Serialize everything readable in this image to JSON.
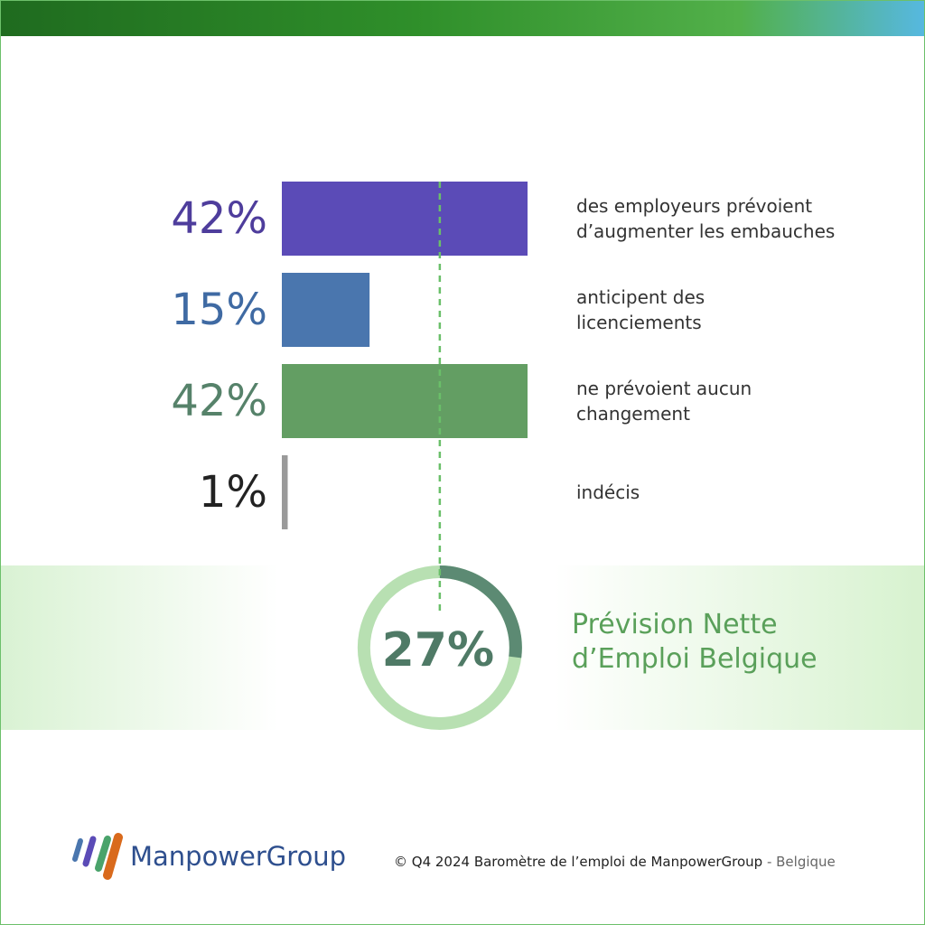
{
  "chart_data": {
    "type": "bar",
    "orientation": "horizontal",
    "categories": [
      "des employeurs prévoient\nd’augmenter les embauches",
      "anticipent des\nlicenciements",
      "ne prévoient aucun\nchangement",
      "indécis"
    ],
    "values": [
      42,
      15,
      42,
      1
    ],
    "value_labels": [
      "42%",
      "15%",
      "42%",
      "1%"
    ],
    "colors": [
      "#5b4bb7",
      "#4a76ae",
      "#639e63",
      "#9a9a9a"
    ],
    "label_colors": [
      "#4e3d9c",
      "#3f6aa3",
      "#56826a",
      "#222222"
    ],
    "net": {
      "value": 27,
      "value_label": "27%",
      "label": "Prévision Nette\nd’Emploi Belgique",
      "color": "#5c8a73",
      "track_color": "#b8e0b2",
      "line_color": "#6abf69"
    }
  },
  "footer": {
    "logo": "ManpowerGroup",
    "copyright": "© Q4 2024 Baromètre de l’emploi de ManpowerGroup",
    "region": "- Belgique"
  }
}
